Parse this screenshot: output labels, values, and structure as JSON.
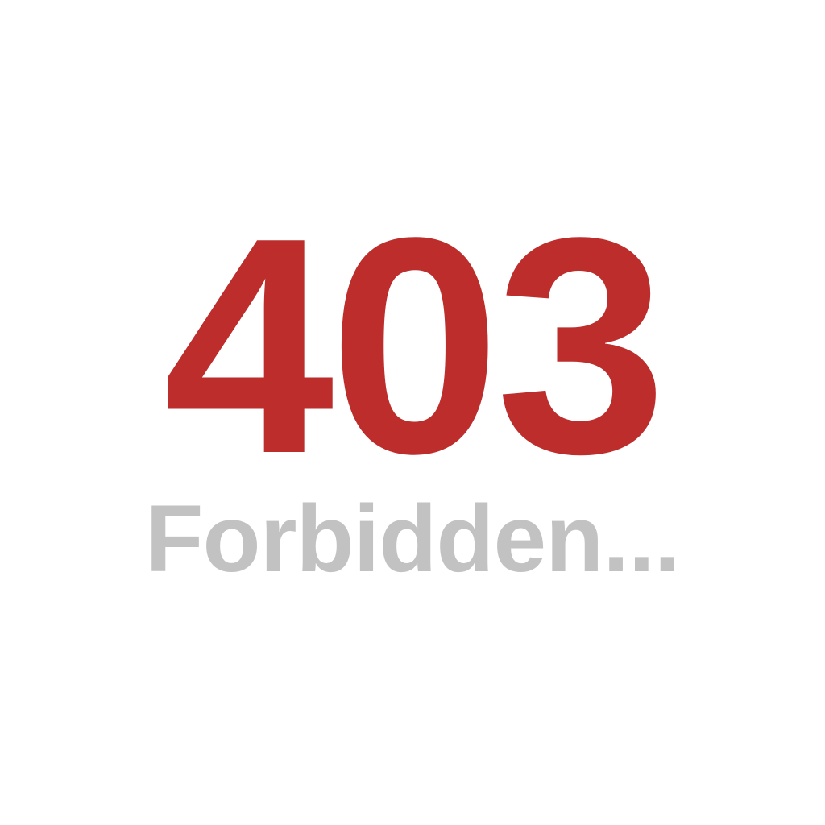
{
  "error": {
    "code": "403",
    "message": "Forbidden..."
  },
  "colors": {
    "code_color": "#bd2d2b",
    "message_color": "#c2c2c2",
    "background": "#ffffff"
  }
}
